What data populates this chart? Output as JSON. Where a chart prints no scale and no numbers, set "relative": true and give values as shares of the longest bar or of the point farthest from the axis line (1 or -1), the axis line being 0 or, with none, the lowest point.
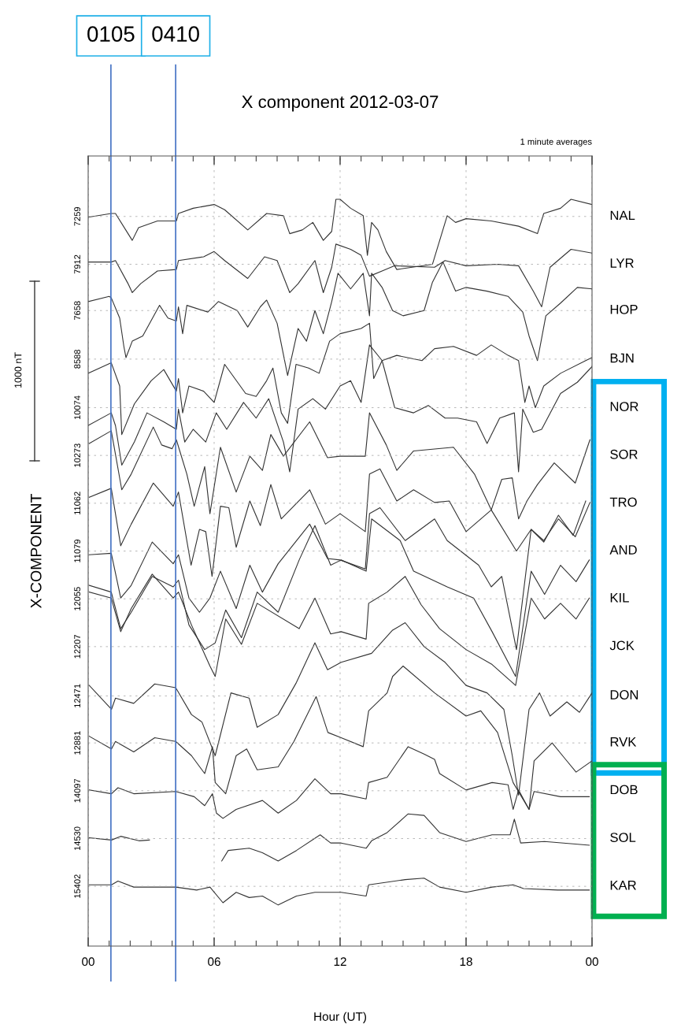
{
  "chart_data": {
    "type": "line",
    "title": "X component 2012-03-07",
    "xlabel": "Hour (UT)",
    "ylabel": "X-COMPONENT",
    "relative": true,
    "annotations": [
      "1 minute averages",
      "1000 nT",
      "0105",
      "0410",
      "7259",
      "7912",
      "7658",
      "8588",
      "10074",
      "10273",
      "11062",
      "11079",
      "12055",
      "12207",
      "12471",
      "12881",
      "14097",
      "14530",
      "15402"
    ],
    "xlim": [
      0,
      24
    ],
    "xticks": [
      {
        "value": 0,
        "label": "00"
      },
      {
        "value": 6,
        "label": "06"
      },
      {
        "value": 12,
        "label": "12"
      },
      {
        "value": 18,
        "label": "18"
      },
      {
        "value": 24,
        "label": "00"
      }
    ],
    "grid": "x",
    "ref_lines": [
      {
        "axis": "x",
        "value": 1.083,
        "color": "#4472c4"
      },
      {
        "axis": "x",
        "value": 4.167,
        "color": "#4472c4"
      },
      {
        "axis": "y",
        "value": 0.977,
        "color": "#aaaaaa",
        "line_style": "dashed"
      },
      {
        "axis": "y",
        "value": 0.913,
        "color": "#aaaaaa",
        "line_style": "dashed"
      },
      {
        "axis": "y",
        "value": 0.851,
        "color": "#aaaaaa",
        "line_style": "dashed"
      },
      {
        "axis": "y",
        "value": 0.786,
        "color": "#aaaaaa",
        "line_style": "dashed"
      },
      {
        "axis": "y",
        "value": 0.721,
        "color": "#aaaaaa",
        "line_style": "dashed"
      },
      {
        "axis": "y",
        "value": 0.657,
        "color": "#aaaaaa",
        "line_style": "dashed"
      },
      {
        "axis": "y",
        "value": 0.593,
        "color": "#aaaaaa",
        "line_style": "dashed"
      },
      {
        "axis": "y",
        "value": 0.529,
        "color": "#aaaaaa",
        "line_style": "dashed"
      },
      {
        "axis": "y",
        "value": 0.465,
        "color": "#aaaaaa",
        "line_style": "dashed"
      },
      {
        "axis": "y",
        "value": 0.401,
        "color": "#aaaaaa",
        "line_style": "dashed"
      },
      {
        "axis": "y",
        "value": 0.335,
        "color": "#aaaaaa",
        "line_style": "dashed"
      },
      {
        "axis": "y",
        "value": 0.272,
        "color": "#aaaaaa",
        "line_style": "dashed"
      },
      {
        "axis": "y",
        "value": 0.208,
        "color": "#aaaaaa",
        "line_style": "dashed"
      },
      {
        "axis": "y",
        "value": 0.144,
        "color": "#aaaaaa",
        "line_style": "dashed"
      },
      {
        "axis": "y",
        "value": 0.08,
        "color": "#aaaaaa",
        "line_style": "dashed"
      }
    ],
    "series": [
      {
        "name": "NAL",
        "color": "#333333",
        "x": [
          0,
          1.1,
          1.3,
          1.9,
          2.1,
          2.4,
          3.3,
          4.2,
          4.3,
          5.0,
          6.0,
          6.5,
          7.6,
          8.5,
          9.3,
          9.6,
          10.2,
          10.7,
          11.2,
          11.6,
          11.8,
          12.0,
          12.5,
          13.1,
          13.3,
          13.5,
          13.8,
          14.2,
          14.7,
          16.4,
          17.1,
          17.5,
          18.0,
          19.2,
          20.5,
          21.4,
          21.7,
          22.5,
          23.0,
          24
        ],
        "values": [
          0.976,
          0.981,
          0.981,
          0.954,
          0.945,
          0.962,
          0.971,
          0.971,
          0.981,
          0.988,
          0.993,
          0.986,
          0.959,
          0.981,
          0.978,
          0.954,
          0.959,
          0.969,
          0.945,
          0.957,
          1,
          1,
          0.988,
          0.978,
          0.925,
          0.969,
          0.959,
          0.93,
          0.906,
          0.913,
          0.978,
          0.969,
          0.974,
          0.971,
          0.964,
          0.954,
          0.981,
          0.988,
          1,
          0.993
        ]
      },
      {
        "name": "LYR",
        "color": "#333333",
        "x": [
          0,
          1.1,
          1.3,
          1.9,
          2.1,
          2.5,
          3.3,
          4.2,
          4.3,
          5.5,
          6.0,
          6.5,
          7.6,
          8.4,
          9.0,
          9.6,
          10.0,
          10.8,
          11.2,
          11.6,
          11.8,
          12.5,
          13.0,
          13.4,
          14.0,
          14.6,
          16.5,
          17.0,
          18.0,
          19.5,
          20.5,
          21.2,
          21.6,
          22.0,
          23.0,
          24
        ],
        "values": [
          0.916,
          0.916,
          0.918,
          0.887,
          0.875,
          0.887,
          0.904,
          0.906,
          0.918,
          0.923,
          0.93,
          0.918,
          0.894,
          0.923,
          0.918,
          0.875,
          0.887,
          0.918,
          0.875,
          0.909,
          0.94,
          0.933,
          0.925,
          0.897,
          0.904,
          0.911,
          0.909,
          0.918,
          0.911,
          0.913,
          0.911,
          0.877,
          0.856,
          0.909,
          0.933,
          0.928
        ]
      },
      {
        "name": "HOP",
        "color": "#333333",
        "x": [
          0,
          1.0,
          1.1,
          1.5,
          1.7,
          1.8,
          2.1,
          2.6,
          3.4,
          3.8,
          4.2,
          4.3,
          4.5,
          4.7,
          5.7,
          6.2,
          7.1,
          7.6,
          8.2,
          8.5,
          9.0,
          9.5,
          10.0,
          10.4,
          10.8,
          11.2,
          11.6,
          11.9,
          12.5,
          13.1,
          13.4,
          13.5,
          14.0,
          14.5,
          15.0,
          16.0,
          16.4,
          16.9,
          17.5,
          18.0,
          19.0,
          20.0,
          20.7,
          21.0,
          21.4,
          21.8,
          22.5,
          23.3,
          24
        ],
        "values": [
          0.863,
          0.87,
          0.868,
          0.841,
          0.803,
          0.788,
          0.81,
          0.817,
          0.858,
          0.841,
          0.837,
          0.856,
          0.82,
          0.858,
          0.849,
          0.863,
          0.851,
          0.829,
          0.856,
          0.865,
          0.834,
          0.764,
          0.827,
          0.81,
          0.851,
          0.82,
          0.863,
          0.901,
          0.88,
          0.901,
          0.844,
          0.901,
          0.882,
          0.851,
          0.844,
          0.851,
          0.889,
          0.916,
          0.877,
          0.882,
          0.877,
          0.87,
          0.849,
          0.817,
          0.784,
          0.844,
          0.861,
          0.882,
          0.88
        ]
      },
      {
        "name": "BJN",
        "color": "#333333",
        "x": [
          0,
          1.1,
          1.5,
          1.6,
          2.2,
          3.0,
          3.6,
          4.2,
          4.3,
          4.5,
          4.8,
          5.5,
          6.0,
          6.5,
          7.5,
          8.0,
          8.5,
          8.8,
          9.2,
          9.5,
          9.9,
          10.5,
          11.0,
          11.5,
          12.0,
          13.0,
          13.4,
          13.6,
          14.0,
          14.7,
          15.9,
          16.5,
          17.4,
          18.5,
          19.2,
          20.0,
          20.5,
          20.8,
          21.0,
          21.3,
          21.7,
          22.5,
          23.7,
          24
        ],
        "values": [
          0.767,
          0.781,
          0.75,
          0.685,
          0.726,
          0.757,
          0.772,
          0.743,
          0.76,
          0.714,
          0.75,
          0.743,
          0.728,
          0.779,
          0.74,
          0.736,
          0.757,
          0.774,
          0.714,
          0.7,
          0.779,
          0.774,
          0.767,
          0.81,
          0.82,
          0.827,
          0.834,
          0.76,
          0.784,
          0.791,
          0.784,
          0.8,
          0.803,
          0.791,
          0.805,
          0.791,
          0.784,
          0.728,
          0.75,
          0.721,
          0.75,
          0.767,
          0.784,
          0.788
        ]
      },
      {
        "name": "NOR",
        "color": "#333333",
        "x": [
          0,
          1.1,
          1.3,
          1.6,
          2.2,
          2.8,
          3.6,
          4.2,
          4.3,
          4.6,
          5.0,
          5.6,
          6.1,
          6.6,
          7.4,
          8.0,
          8.6,
          9.3,
          9.6,
          10.0,
          10.7,
          11.3,
          12.0,
          12.5,
          13.0,
          13.4,
          14.0,
          14.6,
          15.5,
          16.2,
          17.0,
          17.6,
          18.5,
          19.0,
          19.6,
          20.3,
          20.5,
          20.7,
          21.2,
          21.6,
          22.5,
          23.3,
          24
        ],
        "values": [
          0.697,
          0.714,
          0.697,
          0.644,
          0.675,
          0.714,
          0.702,
          0.692,
          0.719,
          0.675,
          0.692,
          0.675,
          0.714,
          0.692,
          0.728,
          0.707,
          0.733,
          0.675,
          0.635,
          0.719,
          0.733,
          0.719,
          0.75,
          0.757,
          0.728,
          0.805,
          0.784,
          0.721,
          0.714,
          0.724,
          0.707,
          0.707,
          0.702,
          0.673,
          0.707,
          0.714,
          0.635,
          0.719,
          0.688,
          0.692,
          0.74,
          0.755,
          0.776
        ]
      },
      {
        "name": "SOR",
        "color": "#333333",
        "x": [
          0.05,
          1.1,
          1.6,
          2.05,
          3.1,
          3.5,
          4.0,
          4.2,
          4.7,
          5.05,
          5.55,
          5.8,
          6.3,
          7.05,
          7.7,
          8.3,
          8.7,
          9.3,
          10.55,
          11.4,
          12.0,
          13.2,
          13.4,
          14.2,
          14.7,
          15.5,
          17.4,
          18.4,
          19.2,
          19.7,
          20.2,
          20.5,
          20.9,
          21.4,
          22.2,
          23.2,
          23.9
        ],
        "values": [
          0.673,
          0.69,
          0.611,
          0.632,
          0.695,
          0.671,
          0.666,
          0.678,
          0.632,
          0.589,
          0.642,
          0.579,
          0.668,
          0.608,
          0.656,
          0.637,
          0.685,
          0.656,
          0.702,
          0.654,
          0.656,
          0.656,
          0.714,
          0.671,
          0.637,
          0.663,
          0.668,
          0.632,
          0.584,
          0.625,
          0.627,
          0.572,
          0.596,
          0.618,
          0.647,
          0.62,
          0.678
        ]
      },
      {
        "name": "TRO",
        "color": "#333333",
        "x": [
          0.05,
          1.1,
          1.55,
          2.05,
          3.1,
          4.05,
          4.3,
          4.9,
          5.3,
          5.6,
          5.9,
          6.3,
          6.7,
          7.05,
          7.7,
          8.2,
          8.7,
          9.2,
          10.55,
          11.3,
          12.0,
          13.2,
          13.4,
          13.9,
          14.7,
          15.5,
          16.5,
          17.2,
          18.0,
          19.2,
          20.4,
          21.1,
          21.7,
          22.4,
          23.1,
          23.7
        ],
        "values": [
          0.601,
          0.613,
          0.536,
          0.565,
          0.62,
          0.589,
          0.608,
          0.51,
          0.558,
          0.555,
          0.495,
          0.589,
          0.587,
          0.534,
          0.596,
          0.563,
          0.618,
          0.572,
          0.611,
          0.565,
          0.579,
          0.555,
          0.632,
          0.639,
          0.596,
          0.611,
          0.594,
          0.596,
          0.555,
          0.584,
          0.529,
          0.558,
          0.541,
          0.577,
          0.55,
          0.596
        ]
      },
      {
        "name": "AND",
        "color": "#333333",
        "x": [
          0.05,
          1.1,
          1.55,
          2.05,
          3.05,
          4.05,
          4.3,
          4.8,
          5.3,
          5.8,
          6.3,
          7.05,
          7.7,
          8.3,
          9.05,
          10.55,
          11.4,
          12.0,
          13.2,
          13.4,
          13.9,
          15.1,
          16.5,
          17.1,
          18.6,
          19.2,
          19.7,
          20.4,
          21.1,
          21.7,
          22.4,
          23.2,
          23.9
        ],
        "values": [
          0.524,
          0.526,
          0.466,
          0.483,
          0.541,
          0.512,
          0.524,
          0.466,
          0.447,
          0.466,
          0.502,
          0.452,
          0.51,
          0.474,
          0.512,
          0.565,
          0.519,
          0.517,
          0.505,
          0.579,
          0.587,
          0.543,
          0.572,
          0.543,
          0.51,
          0.481,
          0.495,
          0.397,
          0.558,
          0.543,
          0.572,
          0.548,
          0.594
        ]
      },
      {
        "name": "KIL",
        "color": "#333333",
        "x": [
          0.05,
          1.1,
          1.55,
          2.05,
          3.05,
          4.05,
          4.3,
          4.8,
          5.55,
          6.05,
          6.55,
          7.3,
          8.05,
          9.05,
          10.05,
          10.8,
          11.55,
          12.05,
          13.24,
          13.5,
          14.86,
          15.5,
          17.1,
          18.36,
          19.24,
          20.36,
          21.1,
          21.74,
          22.5,
          23.24,
          23.87
        ],
        "values": [
          0.483,
          0.474,
          0.425,
          0.447,
          0.495,
          0.481,
          0.49,
          0.43,
          0.397,
          0.406,
          0.45,
          0.413,
          0.474,
          0.447,
          0.517,
          0.563,
          0.51,
          0.517,
          0.502,
          0.572,
          0.543,
          0.502,
          0.481,
          0.466,
          0.421,
          0.361,
          0.502,
          0.471,
          0.51,
          0.488,
          0.517
        ]
      },
      {
        "name": "JCK",
        "color": "#333333",
        "x": [
          0.05,
          1.1,
          1.55,
          2.05,
          3.05,
          4.05,
          4.3,
          4.92,
          5.8,
          6.05,
          6.55,
          7.3,
          8.05,
          10.05,
          10.8,
          11.55,
          12.05,
          13.24,
          13.36,
          14.24,
          15.1,
          15.86,
          16.74,
          18.0,
          19.24,
          20.36,
          21.1,
          21.74,
          22.5,
          23.24,
          23.87
        ],
        "values": [
          0.474,
          0.466,
          0.421,
          0.452,
          0.498,
          0.466,
          0.474,
          0.43,
          0.375,
          0.361,
          0.438,
          0.404,
          0.459,
          0.425,
          0.466,
          0.418,
          0.421,
          0.411,
          0.459,
          0.474,
          0.495,
          0.457,
          0.425,
          0.397,
          0.377,
          0.349,
          0.466,
          0.438,
          0.459,
          0.438,
          0.466
        ]
      },
      {
        "name": "DON",
        "color": "#333333",
        "x": [
          0.05,
          1.11,
          1.3,
          2.17,
          3.17,
          4.17,
          4.92,
          5.42,
          6.05,
          6.8,
          7.67,
          8.05,
          9.05,
          9.92,
          10.8,
          11.4,
          12.05,
          13.5,
          14.5,
          15.1,
          16.0,
          17.0,
          18.0,
          19.0,
          19.8,
          20.2,
          20.5,
          21.0,
          21.5,
          22.0,
          22.8,
          23.4,
          24
        ],
        "values": [
          0.349,
          0.317,
          0.332,
          0.325,
          0.351,
          0.346,
          0.31,
          0.3,
          0.255,
          0.339,
          0.332,
          0.293,
          0.31,
          0.353,
          0.406,
          0.37,
          0.38,
          0.392,
          0.423,
          0.433,
          0.401,
          0.38,
          0.349,
          0.339,
          0.317,
          0.255,
          0.202,
          0.317,
          0.339,
          0.308,
          0.327,
          0.313,
          0.339
        ]
      },
      {
        "name": "RVK",
        "color": "#333333",
        "x": [
          0.05,
          1.11,
          1.3,
          2.17,
          3.17,
          4.17,
          4.92,
          5.55,
          5.92,
          6.05,
          6.55,
          7.05,
          7.55,
          8.05,
          9.05,
          9.8,
          10.86,
          11.42,
          12.05,
          13.1,
          13.36,
          14.24,
          14.5,
          15.0,
          16.5,
          18.0,
          18.7,
          19.5,
          20.24,
          21.0,
          21.24,
          22.1,
          22.74,
          23.24,
          24
        ],
        "values": [
          0.281,
          0.264,
          0.274,
          0.26,
          0.279,
          0.274,
          0.255,
          0.231,
          0.267,
          0.219,
          0.204,
          0.255,
          0.264,
          0.236,
          0.24,
          0.274,
          0.334,
          0.286,
          0.279,
          0.267,
          0.315,
          0.339,
          0.361,
          0.375,
          0.339,
          0.308,
          0.315,
          0.286,
          0.219,
          0.183,
          0.248,
          0.272,
          0.25,
          0.233,
          0.248
        ]
      },
      {
        "name": "DOB",
        "color": "#333333",
        "x": [
          0.05,
          1.11,
          1.42,
          2.17,
          4.17,
          5.05,
          5.55,
          5.92,
          6.11,
          6.42,
          7.05,
          8.3,
          9.05,
          9.92,
          10.8,
          11.55,
          12.05,
          13.24,
          13.36,
          14.24,
          15.24,
          16.0,
          16.5,
          16.74,
          18.0,
          19.24,
          20.0,
          20.24,
          20.5,
          21.0,
          21.24,
          22.5,
          23.87
        ],
        "values": [
          0.209,
          0.204,
          0.212,
          0.204,
          0.207,
          0.2,
          0.188,
          0.204,
          0.178,
          0.171,
          0.183,
          0.195,
          0.178,
          0.195,
          0.224,
          0.204,
          0.204,
          0.197,
          0.219,
          0.226,
          0.267,
          0.257,
          0.25,
          0.231,
          0.209,
          0.219,
          0.216,
          0.183,
          0.209,
          0.183,
          0.207,
          0.2,
          0.2
        ]
      },
      {
        "name": "SOL",
        "color": "#333333",
        "x": [
          0.05,
          1.11,
          1.55,
          2.42,
          2.92,
          4.5,
          6.36,
          6.67,
          7.67,
          8.3,
          9.05,
          9.92,
          11.05,
          11.55,
          12.05,
          13.24,
          13.5,
          14.24,
          15.24,
          16.0,
          16.74,
          18.0,
          19.24,
          20.1,
          20.3,
          20.6,
          21.74,
          23.87
        ],
        "values": [
          0.145,
          0.142,
          0.147,
          0.141,
          0.142,
          null,
          0.114,
          0.128,
          0.131,
          0.125,
          0.114,
          0.128,
          0.149,
          0.138,
          0.138,
          0.131,
          0.141,
          0.152,
          0.177,
          0.175,
          0.152,
          0.14,
          0.149,
          0.149,
          0.17,
          0.138,
          0.14,
          0.135
        ]
      },
      {
        "name": "KAR",
        "color": "#333333",
        "x": [
          0.05,
          1.11,
          1.42,
          2.17,
          4.17,
          5.17,
          5.8,
          6.42,
          7.05,
          7.67,
          8.3,
          9.05,
          9.92,
          10.8,
          12.05,
          13.24,
          13.36,
          15.1,
          16.0,
          16.74,
          18.0,
          19.24,
          20.24,
          20.74,
          22.36,
          23.87
        ],
        "values": [
          0.082,
          0.082,
          0.087,
          0.079,
          0.079,
          0.075,
          0.079,
          0.058,
          0.072,
          0.065,
          0.067,
          0.055,
          0.067,
          0.072,
          0.072,
          0.067,
          0.082,
          0.089,
          0.091,
          0.079,
          0.072,
          0.079,
          0.082,
          0.077,
          0.075,
          0.075
        ]
      }
    ]
  }
}
